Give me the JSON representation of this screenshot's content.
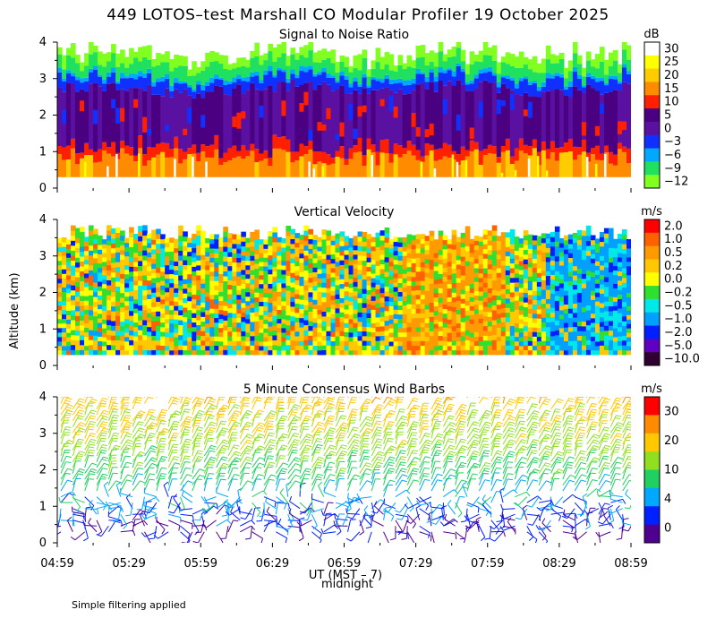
{
  "figure": {
    "title": "449 LOTOS–test Marshall CO Modular Profiler 19 October 2025",
    "ylabel": "Altitude (km)",
    "xlabel": "UT  (MST – 7)",
    "x_annotation": "midnight",
    "footnote": "Simple filtering applied"
  },
  "chart_data": [
    {
      "type": "heatmap",
      "title": "Signal to Noise Ratio",
      "x_ticks": [
        "04:59",
        "05:29",
        "05:59",
        "06:29",
        "06:59",
        "07:29",
        "07:59",
        "08:29",
        "08:59"
      ],
      "y_ticks": [
        "0",
        "1",
        "2",
        "3",
        "4"
      ],
      "ylim": [
        0,
        4
      ],
      "altitude_range_km": [
        0.3,
        3.7
      ],
      "colorbar": {
        "unit": "dB",
        "labels": [
          "30",
          "25",
          "20",
          "15",
          "10",
          "5",
          "0",
          "−3",
          "−6",
          "−9",
          "−12"
        ],
        "colors": [
          "#ffffff",
          "#ffff00",
          "#ffcc00",
          "#ff8c00",
          "#ff2000",
          "#4b0082",
          "#5a10a0",
          "#1030ff",
          "#00a8ff",
          "#20e060",
          "#80ff20"
        ]
      },
      "layers": [
        {
          "range_km": [
            0.3,
            1.2
          ],
          "value_db": "15 to 25"
        },
        {
          "range_km": [
            1.2,
            2.8
          ],
          "value_db": "0 to 5"
        },
        {
          "range_km": [
            2.8,
            3.1
          ],
          "value_db": "−3"
        },
        {
          "range_km": [
            3.1,
            3.7
          ],
          "value_db": "−9 to −12"
        }
      ]
    },
    {
      "type": "heatmap",
      "title": "Vertical Velocity",
      "x_ticks": [
        "04:59",
        "05:29",
        "05:59",
        "06:29",
        "06:59",
        "07:29",
        "07:59",
        "08:29",
        "08:59"
      ],
      "y_ticks": [
        "0",
        "1",
        "2",
        "3",
        "4"
      ],
      "ylim": [
        0,
        4
      ],
      "altitude_range_km": [
        0.3,
        3.8
      ],
      "colorbar": {
        "unit": "m/s",
        "labels": [
          "2.0",
          "1.0",
          "0.5",
          "0.2",
          "0.0",
          "−0.2",
          "−0.5",
          "−1.0",
          "−2.0",
          "−5.0",
          "−10.0"
        ],
        "colors": [
          "#ff0000",
          "#ff6000",
          "#ff9a00",
          "#ffc800",
          "#ffff00",
          "#30e030",
          "#00e8e8",
          "#00a0ff",
          "#0020ff",
          "#6000c0",
          "#300030"
        ]
      },
      "periods": [
        {
          "from": "04:59",
          "to": "07:59",
          "value_ms": "−0.2 to 0.5"
        },
        {
          "from": "07:59",
          "to": "08:59",
          "value_ms": "−1.0 to −0.5"
        }
      ]
    },
    {
      "type": "wind_barbs",
      "title": "5 Minute Consensus Wind Barbs",
      "x_ticks": [
        "04:59",
        "05:29",
        "05:59",
        "06:29",
        "06:59",
        "07:29",
        "07:59",
        "08:29",
        "08:59"
      ],
      "y_ticks": [
        "0",
        "1",
        "2",
        "3",
        "4"
      ],
      "ylim": [
        0,
        4
      ],
      "interval_minutes": 5,
      "colorbar": {
        "unit": "m/s",
        "labels": [
          "30",
          "20",
          "10",
          "4",
          "0"
        ],
        "colors": [
          "#ff0000",
          "#ff8c00",
          "#ffc800",
          "#90e020",
          "#20d060",
          "#00a8ff",
          "#0020ff",
          "#500090"
        ]
      },
      "speed_profile": [
        {
          "altitude_km": 0.3,
          "speed_ms": 2
        },
        {
          "altitude_km": 1.0,
          "speed_ms": 4
        },
        {
          "altitude_km": 1.5,
          "speed_ms": 7
        },
        {
          "altitude_km": 2.5,
          "speed_ms": 12
        },
        {
          "altitude_km": 3.5,
          "speed_ms": 15
        },
        {
          "altitude_km": 4.0,
          "speed_ms": 18
        }
      ]
    }
  ]
}
